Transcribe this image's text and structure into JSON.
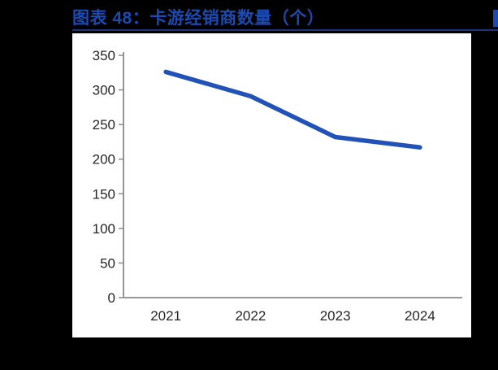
{
  "page": {
    "background_color": "#000000"
  },
  "figure_header": {
    "title": "图表 48：卡游经销商数量（个）",
    "title_color": "#1b4ab1",
    "underline_color": "#1a337c",
    "corner_marker_color": "#1b4ab1"
  },
  "chart_data": {
    "type": "line",
    "title": "卡游经销商数量（个）",
    "categories": [
      "2021",
      "2022",
      "2023",
      "2024"
    ],
    "series": [
      {
        "name": "卡游经销商数量",
        "values": [
          326,
          291,
          232,
          217
        ]
      }
    ],
    "xlabel": "",
    "ylabel": "",
    "ylim": [
      0,
      350
    ],
    "ytick_step": 50,
    "grid": false,
    "legend_position": "none",
    "line_color": "#2052b8",
    "axis_color": "#8a8a8a",
    "tick_label_color": "#262626",
    "plot_background": "#ffffff"
  }
}
